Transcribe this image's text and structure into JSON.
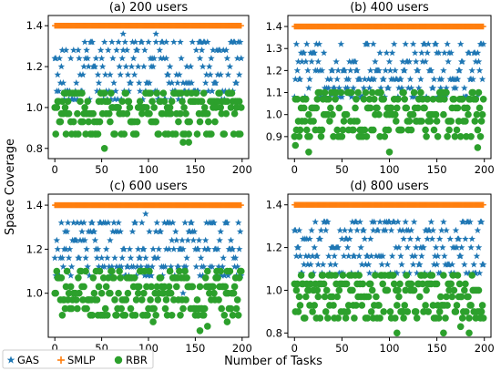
{
  "figure": {
    "ylabel": "Space Coverage",
    "xlabel": "Number of Tasks",
    "legend_position": "bottom-left",
    "legend": [
      {
        "name": "GAS",
        "marker": "star",
        "color": "#1f77b4"
      },
      {
        "name": "SMLP",
        "marker": "plus",
        "color": "#ff7f0e"
      },
      {
        "name": "RBR",
        "marker": "circle",
        "color": "#2ca02c"
      }
    ]
  },
  "chart_data": [
    {
      "type": "scatter",
      "title": "(a) 200 users",
      "xlim": [
        -7,
        207
      ],
      "ylim": [
        0.75,
        1.45
      ],
      "xticks": [
        0,
        50,
        100,
        150,
        200
      ],
      "yticks": [
        0.8,
        1.0,
        1.2,
        1.4
      ],
      "grid": false,
      "series": [
        {
          "name": "SMLP",
          "marker": "plus",
          "color": "#ff7f0e",
          "x_range": [
            0,
            199
          ],
          "y": 1.4
        },
        {
          "name": "GAS",
          "marker": "star",
          "color": "#1f77b4",
          "x_range": [
            0,
            199
          ],
          "levels": [
            1.04,
            1.08,
            1.12,
            1.16,
            1.2,
            1.24,
            1.28,
            1.32
          ],
          "highlights": [
            {
              "x": 73,
              "y": 1.36
            },
            {
              "x": 108,
              "y": 1.36
            },
            {
              "x": 119,
              "y": 1.32
            },
            {
              "x": 155,
              "y": 1.32
            }
          ]
        },
        {
          "name": "RBR",
          "marker": "circle",
          "color": "#2ca02c",
          "x_range": [
            0,
            199
          ],
          "levels": [
            0.87,
            0.93,
            0.97,
            1.0,
            1.03,
            1.07
          ],
          "highlights": [
            {
              "x": 53,
              "y": 0.8
            },
            {
              "x": 137,
              "y": 0.83
            },
            {
              "x": 143,
              "y": 0.83
            },
            {
              "x": 12,
              "y": 0.87
            }
          ]
        }
      ]
    },
    {
      "type": "scatter",
      "title": "(b) 400 users",
      "xlim": [
        -7,
        207
      ],
      "ylim": [
        0.8,
        1.45
      ],
      "xticks": [
        0,
        50,
        100,
        150,
        200
      ],
      "yticks": [
        0.9,
        1.0,
        1.1,
        1.2,
        1.3,
        1.4
      ],
      "grid": false,
      "series": [
        {
          "name": "SMLP",
          "marker": "plus",
          "color": "#ff7f0e",
          "x_range": [
            0,
            199
          ],
          "y": 1.4
        },
        {
          "name": "GAS",
          "marker": "star",
          "color": "#1f77b4",
          "x_range": [
            0,
            199
          ],
          "levels": [
            1.08,
            1.12,
            1.16,
            1.2,
            1.24,
            1.28,
            1.32
          ]
        },
        {
          "name": "RBR",
          "marker": "circle",
          "color": "#2ca02c",
          "x_range": [
            0,
            199
          ],
          "levels": [
            0.9,
            0.93,
            0.97,
            1.0,
            1.03,
            1.07,
            1.1
          ],
          "highlights": [
            {
              "x": 15,
              "y": 0.83
            },
            {
              "x": 100,
              "y": 0.83
            },
            {
              "x": 193,
              "y": 0.85
            },
            {
              "x": 1,
              "y": 0.86
            }
          ]
        }
      ]
    },
    {
      "type": "scatter",
      "title": "(c) 600 users",
      "xlim": [
        -7,
        207
      ],
      "ylim": [
        0.8,
        1.45
      ],
      "xticks": [
        0,
        50,
        100,
        150,
        200
      ],
      "yticks": [
        1.0,
        1.2,
        1.4
      ],
      "grid": false,
      "series": [
        {
          "name": "SMLP",
          "marker": "plus",
          "color": "#ff7f0e",
          "x_range": [
            0,
            199
          ],
          "y": 1.4
        },
        {
          "name": "GAS",
          "marker": "star",
          "color": "#1f77b4",
          "x_range": [
            0,
            199
          ],
          "levels": [
            1.08,
            1.12,
            1.16,
            1.2,
            1.24,
            1.28,
            1.32
          ],
          "highlights": [
            {
              "x": 97,
              "y": 1.36
            },
            {
              "x": 137,
              "y": 1.0
            }
          ]
        },
        {
          "name": "RBR",
          "marker": "circle",
          "color": "#2ca02c",
          "x_range": [
            0,
            199
          ],
          "levels": [
            0.9,
            0.93,
            0.97,
            1.0,
            1.03,
            1.07,
            1.1
          ],
          "highlights": [
            {
              "x": 155,
              "y": 0.83
            },
            {
              "x": 163,
              "y": 0.85
            },
            {
              "x": 184,
              "y": 0.87
            },
            {
              "x": 105,
              "y": 0.87
            }
          ]
        }
      ]
    },
    {
      "type": "scatter",
      "title": "(d) 800 users",
      "xlim": [
        -7,
        207
      ],
      "ylim": [
        0.78,
        1.45
      ],
      "xticks": [
        0,
        50,
        100,
        150,
        200
      ],
      "yticks": [
        0.8,
        1.0,
        1.2,
        1.4
      ],
      "grid": false,
      "series": [
        {
          "name": "SMLP",
          "marker": "plus",
          "color": "#ff7f0e",
          "x_range": [
            0,
            199
          ],
          "y": 1.4
        },
        {
          "name": "GAS",
          "marker": "star",
          "color": "#1f77b4",
          "x_range": [
            0,
            199
          ],
          "levels": [
            1.08,
            1.12,
            1.16,
            1.2,
            1.24,
            1.28,
            1.32
          ]
        },
        {
          "name": "RBR",
          "marker": "circle",
          "color": "#2ca02c",
          "x_range": [
            0,
            199
          ],
          "levels": [
            0.87,
            0.9,
            0.93,
            0.97,
            1.0,
            1.03,
            1.07
          ],
          "highlights": [
            {
              "x": 108,
              "y": 0.8
            },
            {
              "x": 157,
              "y": 0.8
            },
            {
              "x": 184,
              "y": 0.8
            },
            {
              "x": 175,
              "y": 0.83
            }
          ]
        }
      ]
    }
  ]
}
